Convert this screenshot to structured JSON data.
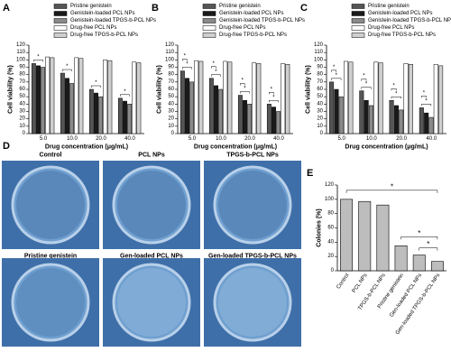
{
  "chart_data": [
    {
      "type": "bar",
      "panel": "A",
      "ylabel": "Cell viability (%)",
      "xlabel": "Drug concentration (μg/mL)",
      "categories": [
        "5.0",
        "10.0",
        "20.0",
        "40.0"
      ],
      "series": [
        {
          "name": "Pristine genistein",
          "color": "#555555",
          "values": [
            95,
            82,
            60,
            48
          ]
        },
        {
          "name": "Genistein-loaded PCL NPs",
          "color": "#1a1a1a",
          "values": [
            92,
            75,
            55,
            44
          ]
        },
        {
          "name": "Genistein-loaded TPGS-b-PCL NPs",
          "color": "#8a8a8a",
          "values": [
            90,
            68,
            50,
            40
          ]
        },
        {
          "name": "Drug-free PCL NPs",
          "color": "#ffffff",
          "values": [
            104,
            103,
            100,
            97
          ]
        },
        {
          "name": "Drug-free TPGS-b-PCL NPs",
          "color": "#cfcfcf",
          "values": [
            103,
            102,
            99,
            96
          ]
        }
      ],
      "ylim": [
        0,
        120
      ],
      "yticks": [
        0,
        10,
        20,
        30,
        40,
        50,
        60,
        70,
        80,
        90,
        100,
        110,
        120
      ],
      "significance": [
        "*",
        "*",
        "*",
        "*"
      ]
    },
    {
      "type": "bar",
      "panel": "B",
      "ylabel": "Cell viability (%)",
      "xlabel": "Drug concentration (μg/mL)",
      "categories": [
        "5.0",
        "10.0",
        "20.0",
        "40.0"
      ],
      "series": [
        {
          "name": "Pristine genistein",
          "color": "#555555",
          "values": [
            85,
            75,
            52,
            40
          ]
        },
        {
          "name": "Genistein-loaded PCL NPs",
          "color": "#1a1a1a",
          "values": [
            75,
            65,
            45,
            36
          ]
        },
        {
          "name": "Genistein-loaded TPGS-b-PCL NPs",
          "color": "#8a8a8a",
          "values": [
            70,
            60,
            40,
            30
          ]
        },
        {
          "name": "Drug-free PCL NPs",
          "color": "#ffffff",
          "values": [
            99,
            98,
            96,
            95
          ]
        },
        {
          "name": "Drug-free TPGS-b-PCL NPs",
          "color": "#cfcfcf",
          "values": [
            98,
            97,
            95,
            94
          ]
        }
      ],
      "ylim": [
        0,
        120
      ],
      "yticks": [
        0,
        10,
        20,
        30,
        40,
        50,
        60,
        70,
        80,
        90,
        100,
        110,
        120
      ],
      "significance": [
        "*",
        "*",
        "*",
        "*",
        "*",
        "*",
        "*",
        "*"
      ]
    },
    {
      "type": "bar",
      "panel": "C",
      "ylabel": "Cell viability (%)",
      "xlabel": "Drug concentration (μg/mL)",
      "categories": [
        "5.0",
        "10.0",
        "20.0",
        "40.0"
      ],
      "series": [
        {
          "name": "Pristine genistein",
          "color": "#555555",
          "values": [
            70,
            58,
            45,
            35
          ]
        },
        {
          "name": "Genistein-loaded PCL NPs",
          "color": "#1a1a1a",
          "values": [
            60,
            45,
            38,
            28
          ]
        },
        {
          "name": "Genistein-loaded TPGS-b-PCL NPs",
          "color": "#8a8a8a",
          "values": [
            50,
            38,
            32,
            22
          ]
        },
        {
          "name": "Drug-free PCL NPs",
          "color": "#ffffff",
          "values": [
            98,
            97,
            95,
            94
          ]
        },
        {
          "name": "Drug-free TPGS-b-PCL NPs",
          "color": "#cfcfcf",
          "values": [
            97,
            96,
            94,
            92
          ]
        }
      ],
      "ylim": [
        0,
        120
      ],
      "yticks": [
        0,
        10,
        20,
        30,
        40,
        50,
        60,
        70,
        80,
        90,
        100,
        110,
        120
      ],
      "significance": [
        "*",
        "*",
        "*",
        "*",
        "*",
        "*",
        "*",
        "*"
      ]
    },
    {
      "type": "bar",
      "panel": "E",
      "ylabel": "Colonies (%)",
      "categories": [
        "Control",
        "PCL NPs",
        "TPGS-b-PCL NPs",
        "Pristine genistein",
        "Gen-loaded PCL NPs",
        "Gen-loaded TPGS-b-PCL NPs"
      ],
      "values": [
        100,
        97,
        92,
        35,
        22,
        13
      ],
      "color": "#bdbdbd",
      "ylim": [
        0,
        120
      ],
      "yticks": [
        0,
        20,
        40,
        60,
        80,
        100,
        120
      ],
      "significance": [
        "*",
        "*",
        "*"
      ]
    }
  ],
  "photos": {
    "panel": "D",
    "labels": [
      "Control",
      "PCL NPs",
      "TPGS-b-PCL NPs",
      "Pristine genistein",
      "Gen-loaded PCL NPs",
      "Gen-loaded TPGS-b-PCL NPs"
    ]
  }
}
